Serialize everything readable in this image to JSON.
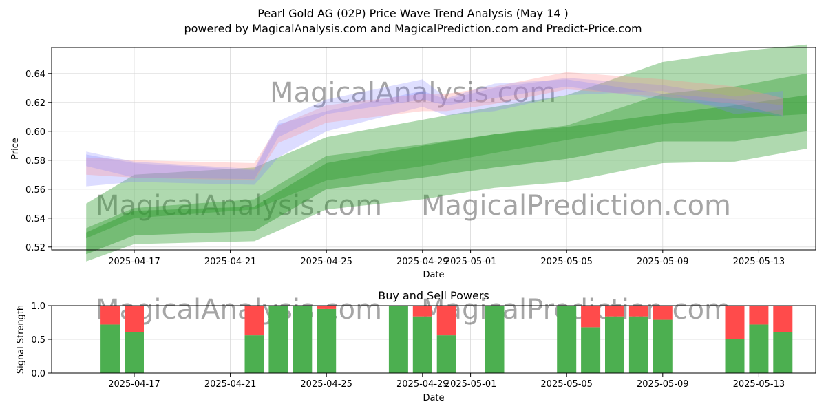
{
  "title_line1": "Pearl Gold AG (02P) Price Wave Trend Analysis (May 14 )",
  "title_line2": "powered by MagicalAnalysis.com and MagicalPrediction.com and Predict-Price.com",
  "watermarks": [
    "MagicalAnalysis.com",
    "MagicalPrediction.com"
  ],
  "colors": {
    "green_band": "#2e9a2e",
    "blue_band": "#8080ff",
    "red_band": "#ff9090",
    "buy": "#4caf50",
    "sell": "#ff4b4b",
    "grid": "#d9d9d9"
  },
  "chart_data": [
    {
      "type": "area",
      "title": "",
      "xlabel": "Date",
      "ylabel": "Price",
      "ylim": [
        0.518,
        0.658
      ],
      "yticks": [
        "0.52",
        "0.54",
        "0.56",
        "0.58",
        "0.60",
        "0.62",
        "0.64"
      ],
      "xticks": [
        "2025-04-17",
        "2025-04-21",
        "2025-04-25",
        "2025-04-29",
        "2025-05-01",
        "2025-05-05",
        "2025-05-09",
        "2025-05-13"
      ],
      "grid": true,
      "series": [
        {
          "group": "green",
          "x": [
            "2025-04-15",
            "2025-04-17",
            "2025-04-22",
            "2025-04-25",
            "2025-04-29",
            "2025-05-02",
            "2025-05-05",
            "2025-05-09",
            "2025-05-12",
            "2025-05-15"
          ],
          "bands": [
            {
              "lower": [
                0.51,
                0.522,
                0.524,
                0.546,
                0.553,
                0.561,
                0.565,
                0.578,
                0.579,
                0.588
              ],
              "upper": [
                0.533,
                0.547,
                0.553,
                0.583,
                0.591,
                0.598,
                0.604,
                0.626,
                0.631,
                0.64
              ]
            },
            {
              "lower": [
                0.526,
                0.54,
                0.546,
                0.566,
                0.576,
                0.585,
                0.594,
                0.605,
                0.609,
                0.612
              ],
              "upper": [
                0.55,
                0.57,
                0.575,
                0.596,
                0.608,
                0.617,
                0.625,
                0.648,
                0.655,
                0.66
              ]
            },
            {
              "lower": [
                0.515,
                0.528,
                0.531,
                0.56,
                0.568,
                0.575,
                0.581,
                0.593,
                0.593,
                0.6
              ],
              "upper": [
                0.53,
                0.545,
                0.548,
                0.578,
                0.59,
                0.598,
                0.603,
                0.612,
                0.618,
                0.625
              ]
            }
          ]
        },
        {
          "group": "blue-red",
          "x": [
            "2025-04-15",
            "2025-04-17",
            "2025-04-22",
            "2025-04-23",
            "2025-04-25",
            "2025-04-29",
            "2025-04-30",
            "2025-05-02",
            "2025-05-05",
            "2025-05-09",
            "2025-05-12",
            "2025-05-14"
          ],
          "bands": [
            {
              "lower": [
                0.562,
                0.565,
                0.563,
                0.582,
                0.6,
                0.617,
                0.611,
                0.614,
                0.625,
                0.628,
                0.612,
                0.615
              ],
              "upper": [
                0.584,
                0.578,
                0.573,
                0.605,
                0.614,
                0.628,
                0.622,
                0.63,
                0.637,
                0.632,
                0.624,
                0.628
              ]
            },
            {
              "lower": [
                0.57,
                0.568,
                0.566,
                0.592,
                0.606,
                0.614,
                0.614,
                0.619,
                0.629,
                0.624,
                0.619,
                0.611
              ]
            },
            {
              "lower": [
                0.576,
                0.568,
                0.567,
                0.596,
                0.612,
                0.622,
                0.618,
                0.623,
                0.631,
                0.622,
                0.616,
                0.61
              ],
              "upper": [
                0.586,
                0.579,
                0.574,
                0.607,
                0.622,
                0.636,
                0.623,
                0.633,
                0.636,
                0.626,
                0.622,
                0.618
              ]
            }
          ]
        }
      ]
    },
    {
      "type": "bar",
      "title": "Buy and Sell Powers",
      "xlabel": "Date",
      "ylabel": "Signal Strength",
      "ylim": [
        0,
        1
      ],
      "yticks": [
        "0.0",
        "0.5",
        "1.0"
      ],
      "xticks": [
        "2025-04-17",
        "2025-04-21",
        "2025-04-25",
        "2025-04-29",
        "2025-05-01",
        "2025-05-05",
        "2025-05-09",
        "2025-05-13"
      ],
      "categories": [
        "2025-04-16",
        "2025-04-17",
        "2025-04-22",
        "2025-04-23",
        "2025-04-24",
        "2025-04-25",
        "2025-04-28",
        "2025-04-29",
        "2025-04-30",
        "2025-05-02",
        "2025-05-05",
        "2025-05-06",
        "2025-05-07",
        "2025-05-08",
        "2025-05-09",
        "2025-05-12",
        "2025-05-13",
        "2025-05-14"
      ],
      "series": [
        {
          "name": "Buy",
          "values": [
            0.72,
            0.61,
            0.56,
            1.0,
            1.0,
            0.95,
            1.0,
            0.84,
            0.56,
            1.0,
            1.0,
            0.68,
            0.84,
            0.84,
            0.79,
            0.5,
            0.72,
            0.61
          ]
        },
        {
          "name": "Sell",
          "values": [
            0.28,
            0.39,
            0.44,
            0.0,
            0.0,
            0.05,
            0.0,
            0.16,
            0.44,
            0.0,
            0.0,
            0.32,
            0.16,
            0.16,
            0.21,
            0.5,
            0.28,
            0.39
          ]
        }
      ]
    }
  ]
}
